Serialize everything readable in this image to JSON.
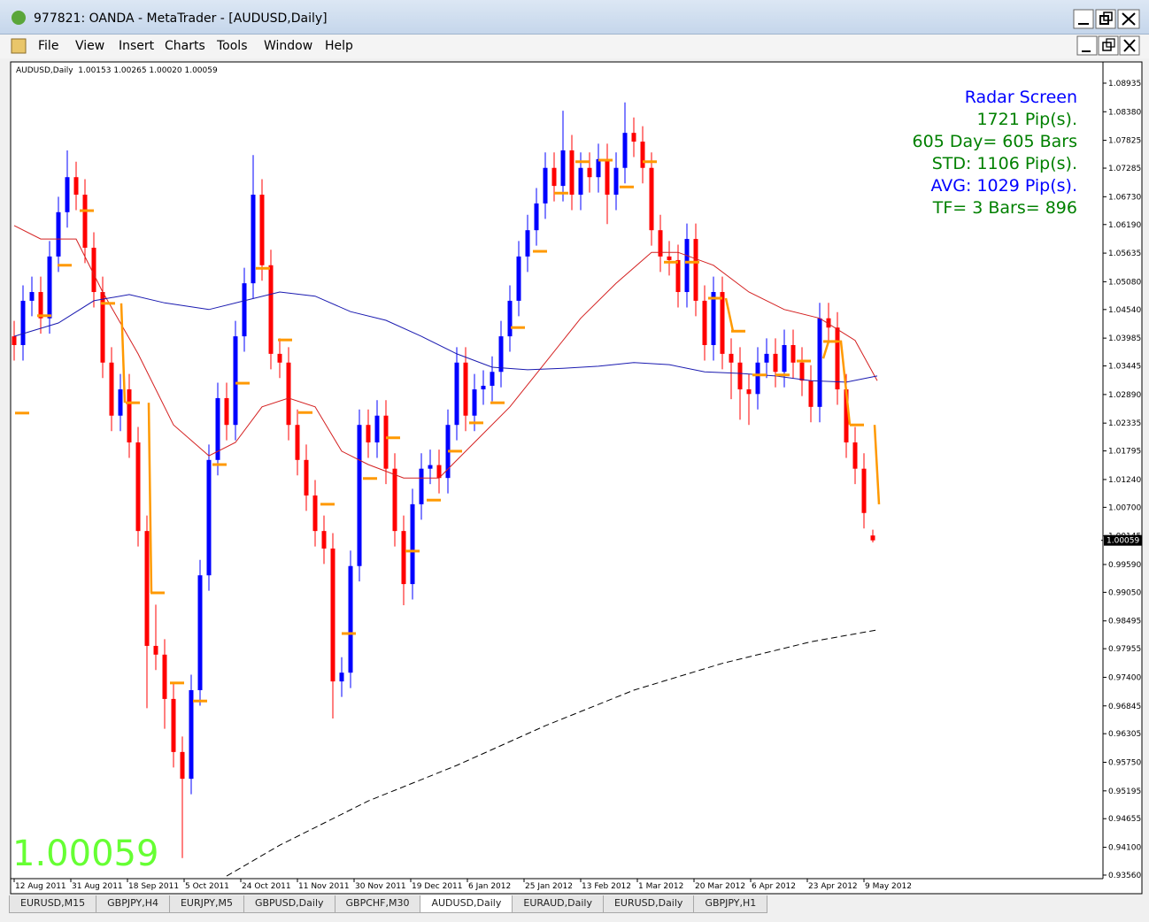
{
  "window": {
    "title": "977821: OANDA - MetaTrader - [AUDUSD,Daily]"
  },
  "menu": [
    "File",
    "View",
    "Insert",
    "Charts",
    "Tools",
    "Window",
    "Help"
  ],
  "chart_header": "AUDUSD,Daily  1.00153 1.00265 1.00020 1.00059",
  "radar": [
    {
      "text": "Radar Screen",
      "color": "#0000ff"
    },
    {
      "text": "1721 Pip(s).",
      "color": "#008000"
    },
    {
      "text": "605 Day= 605 Bars",
      "color": "#008000"
    },
    {
      "text": "STD: 1106 Pip(s).",
      "color": "#008000"
    },
    {
      "text": "AVG: 1029 Pip(s).",
      "color": "#0000ff"
    },
    {
      "text": "TF= 3 Bars= 896",
      "color": "#008000"
    }
  ],
  "tabs": [
    "EURUSD,M15",
    "GBPJPY,H4",
    "EURJPY,M5",
    "GBPUSD,Daily",
    "GBPCHF,M30",
    "AUDUSD,Daily",
    "EURAUD,Daily",
    "EURUSD,Daily",
    "GBPJPY,H1"
  ],
  "active_tab": 5,
  "chart_data": {
    "type": "candlestick",
    "up_color": "#0000ff",
    "down_color": "#ff0000",
    "big_price_color": "#66ff33",
    "current_price": 1.00059,
    "xlim": [
      -0.4,
      123
    ],
    "ylim": [
      0.93491,
      1.09347
    ],
    "xticks": [
      {
        "value": 0,
        "label": "12 Aug 2011"
      },
      {
        "value": 6.4,
        "label": "31 Aug 2011"
      },
      {
        "value": 12.8,
        "label": "18 Sep 2011"
      },
      {
        "value": 19.2,
        "label": "5 Oct 2011"
      },
      {
        "value": 25.6,
        "label": "24 Oct 2011"
      },
      {
        "value": 32,
        "label": "11 Nov 2011"
      },
      {
        "value": 38.4,
        "label": "30 Nov 2011"
      },
      {
        "value": 44.8,
        "label": "19 Dec 2011"
      },
      {
        "value": 51.2,
        "label": "6 Jan 2012"
      },
      {
        "value": 57.6,
        "label": "25 Jan 2012"
      },
      {
        "value": 64,
        "label": "13 Feb 2012"
      },
      {
        "value": 70.4,
        "label": "1 Mar 2012"
      },
      {
        "value": 76.8,
        "label": "20 Mar 2012"
      },
      {
        "value": 83.2,
        "label": "6 Apr 2012"
      },
      {
        "value": 89.6,
        "label": "23 Apr 2012"
      },
      {
        "value": 96,
        "label": "9 May 2012"
      }
    ],
    "yticks": [
      1.08935,
      {
        "value": 1.0838,
        "label": "1.08380"
      },
      1.07825,
      1.07285,
      {
        "value": 1.0673,
        "label": "1.06730"
      },
      {
        "value": 1.0619,
        "label": "1.06190"
      },
      1.05635,
      {
        "value": 1.0508,
        "label": "1.05080"
      },
      {
        "value": 1.0454,
        "label": "1.04540"
      },
      1.03985,
      1.03445,
      {
        "value": 1.0289,
        "label": "1.02890"
      },
      1.02335,
      1.01795,
      {
        "value": 1.0124,
        "label": "1.01240"
      },
      {
        "value": 1.007,
        "label": "1.00700"
      },
      1.00145,
      {
        "value": 0.9959,
        "label": "0.99590"
      },
      {
        "value": 0.9905,
        "label": "0.99050"
      },
      0.98495,
      0.97955,
      {
        "value": 0.974,
        "label": "0.97400"
      },
      0.96845,
      0.96305,
      {
        "value": 0.9575,
        "label": "0.95750"
      },
      0.95195,
      0.94655,
      {
        "value": 0.941,
        "label": "0.94100"
      },
      {
        "value": 0.9356,
        "label": "0.93560"
      }
    ],
    "candles": {
      "open": [
        1.0402,
        1.0385,
        1.0471,
        1.0488,
        1.0437,
        1.0557,
        1.0643,
        1.0711,
        1.0677,
        1.0574,
        1.0488,
        1.0351,
        1.0248,
        1.0299,
        1.0196,
        1.0024,
        0.9801,
        0.9784,
        0.9698,
        0.9595,
        0.9543,
        0.9715,
        0.9938,
        1.0162,
        1.0282,
        1.023,
        1.0402,
        1.0505,
        1.0677,
        1.054,
        1.0368,
        1.0351,
        1.023,
        1.0162,
        1.0093,
        1.0024,
        0.999,
        0.9732,
        0.9749,
        0.9956,
        1.023,
        1.0196,
        1.0248,
        1.0145,
        1.0024,
        0.9921,
        1.0076,
        1.0145,
        1.0152,
        1.0127,
        1.023,
        1.0351,
        1.0248,
        1.0299,
        1.0306,
        1.0333,
        1.0402,
        1.0471,
        1.0557,
        1.0608,
        1.066,
        1.0729,
        1.0694,
        1.0763,
        1.0677,
        1.0729,
        1.0711,
        1.0746,
        1.0677,
        1.0729,
        1.0797,
        1.078,
        1.0729,
        1.0608,
        1.0557,
        1.055,
        1.0488,
        1.0591,
        1.0471,
        1.0385,
        1.0488,
        1.0368,
        1.0351,
        1.0299,
        1.029,
        1.0351,
        1.0368,
        1.0333,
        1.0385,
        1.0351,
        1.0316,
        1.0265,
        1.0437,
        1.0419,
        1.0299,
        1.0196,
        1.0145,
        1.00153
      ],
      "high": [
        1.0432,
        1.0501,
        1.0518,
        1.0518,
        1.0587,
        1.0673,
        1.0763,
        1.0741,
        1.0707,
        1.0604,
        1.0518,
        1.0381,
        1.0329,
        1.0329,
        1.0226,
        1.0054,
        0.9881,
        0.9814,
        0.9728,
        0.9625,
        0.9745,
        0.9968,
        1.0192,
        1.0312,
        1.0312,
        1.0432,
        1.0535,
        1.0754,
        1.0707,
        1.057,
        1.0398,
        1.0381,
        1.026,
        1.0192,
        1.0123,
        1.0054,
        1.002,
        0.9779,
        0.9986,
        1.026,
        1.026,
        1.0278,
        1.0278,
        1.0175,
        1.0054,
        1.0106,
        1.0175,
        1.0182,
        1.0182,
        1.026,
        1.0381,
        1.0381,
        1.0329,
        1.0336,
        1.0363,
        1.0432,
        1.0501,
        1.0587,
        1.0638,
        1.069,
        1.0759,
        1.0759,
        1.084,
        1.0793,
        1.0759,
        1.0759,
        1.0776,
        1.0776,
        1.0759,
        1.0856,
        1.0827,
        1.081,
        1.0759,
        1.0638,
        1.0587,
        1.058,
        1.0621,
        1.0621,
        1.0501,
        1.0518,
        1.0518,
        1.0398,
        1.0381,
        1.0329,
        1.0381,
        1.0398,
        1.0398,
        1.0415,
        1.0415,
        1.0381,
        1.0346,
        1.0467,
        1.0467,
        1.0449,
        1.0329,
        1.0226,
        1.0175,
        1.00265
      ],
      "low": [
        1.0355,
        1.0355,
        1.0441,
        1.0407,
        1.0407,
        1.0527,
        1.0613,
        1.0647,
        1.0544,
        1.0458,
        1.0321,
        1.0218,
        1.0218,
        1.0166,
        0.9994,
        0.968,
        0.9754,
        0.964,
        0.9565,
        0.9389,
        0.9513,
        0.9685,
        0.9908,
        1.0132,
        1.02,
        1.02,
        1.0372,
        1.0475,
        1.051,
        1.0338,
        1.0321,
        1.02,
        1.0132,
        1.0063,
        0.9994,
        0.996,
        0.966,
        0.9702,
        0.9719,
        0.9926,
        1.0166,
        1.0166,
        1.0115,
        0.9994,
        0.988,
        0.9891,
        1.0046,
        1.0115,
        1.0097,
        1.0097,
        1.02,
        1.0218,
        1.0218,
        1.0269,
        1.0276,
        1.0303,
        1.0372,
        1.0441,
        1.0527,
        1.0578,
        1.063,
        1.0664,
        1.0664,
        1.0647,
        1.0647,
        1.0681,
        1.0681,
        1.062,
        1.0647,
        1.0699,
        1.075,
        1.0699,
        1.0578,
        1.0527,
        1.052,
        1.0458,
        1.0458,
        1.0441,
        1.0355,
        1.0355,
        1.0338,
        1.028,
        1.024,
        1.023,
        1.026,
        1.0321,
        1.0303,
        1.0303,
        1.0321,
        1.0286,
        1.0235,
        1.0235,
        1.0389,
        1.0269,
        1.0166,
        1.0115,
        1.0029,
        1.0002
      ],
      "close": [
        1.0385,
        1.0471,
        1.0488,
        1.0437,
        1.0557,
        1.0643,
        1.0711,
        1.0677,
        1.0574,
        1.0488,
        1.0351,
        1.0248,
        1.0299,
        1.0196,
        1.0024,
        0.9801,
        0.9784,
        0.9698,
        0.9595,
        0.9543,
        0.9715,
        0.9938,
        1.0162,
        1.0282,
        1.023,
        1.0402,
        1.0505,
        1.0677,
        1.054,
        1.0368,
        1.0351,
        1.023,
        1.0162,
        1.0093,
        1.0024,
        0.999,
        0.9732,
        0.9749,
        0.9956,
        1.023,
        1.0196,
        1.0248,
        1.0145,
        1.0024,
        0.9921,
        1.0076,
        1.0145,
        1.0152,
        1.0127,
        1.023,
        1.0351,
        1.0248,
        1.0299,
        1.0306,
        1.0333,
        1.0402,
        1.0471,
        1.0557,
        1.0608,
        1.066,
        1.0729,
        1.0694,
        1.0763,
        1.0677,
        1.0729,
        1.0711,
        1.0746,
        1.0677,
        1.0729,
        1.0797,
        1.078,
        1.0729,
        1.0608,
        1.0557,
        1.055,
        1.0488,
        1.0591,
        1.0471,
        1.0385,
        1.0488,
        1.0368,
        1.0351,
        1.0299,
        1.029,
        1.0351,
        1.0368,
        1.0333,
        1.0385,
        1.0351,
        1.0316,
        1.0265,
        1.0437,
        1.0419,
        1.0299,
        1.0196,
        1.0145,
        1.0059,
        1.00059
      ]
    },
    "lines": [
      {
        "color": "#d42020",
        "dash": false,
        "x": [
          0,
          3,
          7,
          10,
          14,
          18,
          22,
          25,
          28,
          31,
          34,
          37,
          40,
          44,
          48,
          52,
          56,
          60,
          64,
          68,
          72,
          75,
          79,
          83,
          87,
          91,
          95,
          97.5
        ],
        "values": [
          1.0617,
          1.0591,
          1.0591,
          1.0488,
          1.0368,
          1.023,
          1.017,
          1.0196,
          1.0265,
          1.0282,
          1.0265,
          1.0179,
          1.0153,
          1.0127,
          1.0127,
          1.0196,
          1.0265,
          1.0351,
          1.0437,
          1.0505,
          1.0565,
          1.0565,
          1.054,
          1.0488,
          1.0454,
          1.0437,
          1.0394,
          1.0316
        ]
      },
      {
        "color": "#1a1ab0",
        "dash": false,
        "x": [
          0,
          5,
          9,
          13,
          17,
          22,
          26,
          30,
          34,
          38,
          42,
          46,
          50,
          54,
          58,
          62,
          66,
          70,
          74,
          78,
          82,
          86,
          90,
          94,
          97.5
        ],
        "values": [
          1.0402,
          1.0428,
          1.0471,
          1.0483,
          1.0467,
          1.0454,
          1.0471,
          1.0488,
          1.048,
          1.045,
          1.0433,
          1.0402,
          1.0368,
          1.0342,
          1.0337,
          1.034,
          1.0344,
          1.0351,
          1.0347,
          1.0333,
          1.033,
          1.0325,
          1.0316,
          1.0313,
          1.0325
        ]
      },
      {
        "color": "#000000",
        "dash": true,
        "x": [
          24,
          30,
          40,
          50,
          60,
          70,
          80,
          90,
          97.5
        ],
        "values": [
          0.9354,
          0.9414,
          0.95,
          0.9569,
          0.9646,
          0.9715,
          0.9767,
          0.9809,
          0.9832
        ]
      },
      {
        "color": "#ff9900",
        "dash": false,
        "x": [
          12.1,
          12.5,
          null,
          15.2,
          15.5,
          null,
          80.4,
          81.2,
          null,
          91.4,
          92,
          93.4,
          94.4,
          null,
          97.2,
          97.7
        ],
        "values": [
          1.0466,
          1.0273,
          null,
          1.0273,
          0.9904,
          null,
          1.0476,
          1.0412,
          null,
          1.0359,
          1.0392,
          1.0392,
          1.023,
          null,
          1.023,
          1.0076
        ]
      }
    ],
    "dashes": {
      "color": "#ff9900",
      "x": [
        0.9,
        3.4,
        5.7,
        8.2,
        10.6,
        13.4,
        16.2,
        18.4,
        21,
        23.2,
        25.8,
        28.1,
        30.6,
        32.9,
        35.4,
        37.8,
        40.2,
        42.8,
        45,
        47.4,
        49.8,
        52.2,
        54.6,
        56.9,
        59.4,
        61.8,
        64.2,
        66.8,
        69.2,
        71.8,
        74.2,
        76.6,
        79.2,
        81.8,
        84.2,
        86.8,
        89.2,
        92.2,
        95.2
      ],
      "values": [
        1.0253,
        1.0442,
        1.054,
        1.0646,
        1.0466,
        1.0273,
        0.9904,
        0.9729,
        0.9694,
        1.0153,
        1.0311,
        1.0534,
        1.0395,
        1.0254,
        1.0076,
        0.9825,
        1.0126,
        1.0205,
        0.9985,
        1.0084,
        1.0179,
        1.0234,
        1.0273,
        1.0419,
        1.0567,
        1.068,
        1.0741,
        1.0744,
        1.0692,
        1.0741,
        1.0546,
        1.0546,
        1.0476,
        1.0412,
        1.0327,
        1.0327,
        1.0354,
        1.0392,
        1.023
      ]
    }
  }
}
